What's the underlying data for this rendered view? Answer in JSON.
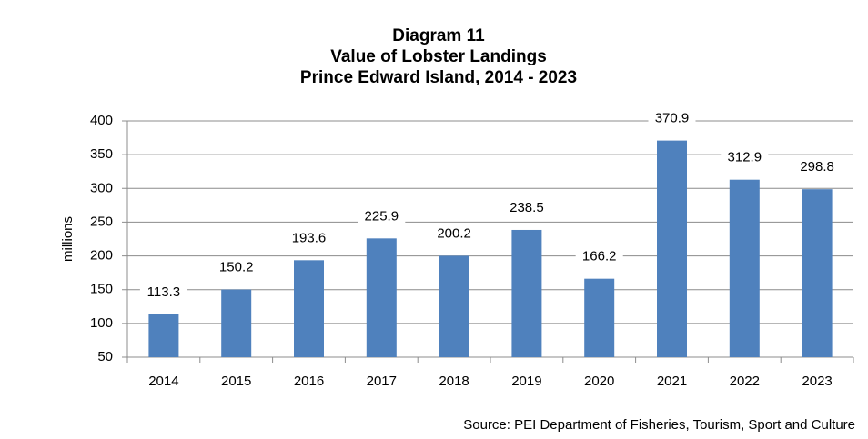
{
  "chart_data": {
    "type": "bar",
    "title": [
      "Diagram 11",
      "Value of Lobster Landings",
      "Prince Edward Island, 2014 - 2023"
    ],
    "ylabel": "millions",
    "source": "Source: PEI Department  of Fisheries, Tourism, Sport and Culture",
    "categories": [
      "2014",
      "2015",
      "2016",
      "2017",
      "2018",
      "2019",
      "2020",
      "2021",
      "2022",
      "2023"
    ],
    "values": [
      113.3,
      150.2,
      193.6,
      225.9,
      200.2,
      238.5,
      166.2,
      370.9,
      312.9,
      298.8
    ],
    "color": "#4f81bd",
    "ylim": [
      50,
      400
    ],
    "yticks": [
      50,
      100,
      150,
      200,
      250,
      300,
      350,
      400
    ],
    "grid": true
  }
}
